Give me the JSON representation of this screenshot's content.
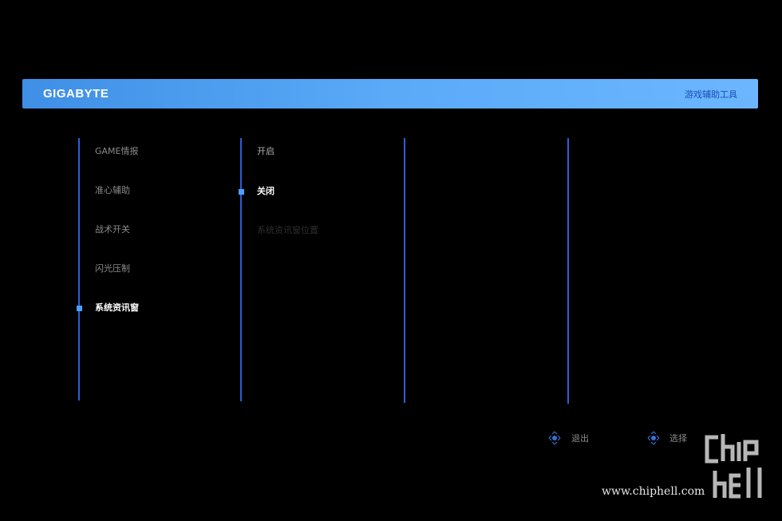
{
  "header": {
    "logo": "GIGABYTE",
    "title": "游戏辅助工具"
  },
  "menu": {
    "items": [
      "GAME情报",
      "准心辅助",
      "战术开关",
      "闪光压制",
      "系统资讯窗"
    ]
  },
  "submenu": {
    "items": [
      "开启",
      "关闭",
      "系统资讯窗位置"
    ]
  },
  "footer": {
    "hints": [
      "退出",
      "选择"
    ]
  },
  "watermark": {
    "url": "www.chiphell.com"
  }
}
